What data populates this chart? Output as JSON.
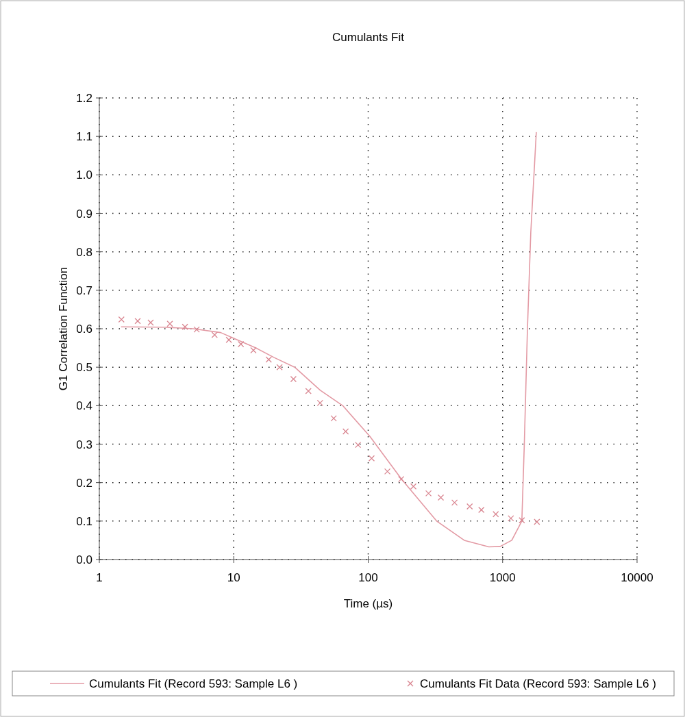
{
  "chart_data": {
    "type": "line",
    "title": "Cumulants Fit",
    "xlabel": "Time (µs)",
    "ylabel": "G1 Correlation Function",
    "log": "x",
    "xlim": [
      1,
      10000
    ],
    "xticks": [
      1,
      10,
      100,
      1000,
      10000
    ],
    "ylim": [
      0,
      1.2
    ],
    "yticks": [
      {
        "value": 0,
        "label": "0.0"
      },
      0.1,
      0.2,
      0.3,
      0.4,
      0.5,
      0.6,
      0.7,
      0.8,
      0.9,
      {
        "value": 1,
        "label": "1.0"
      },
      1.1,
      1.2
    ],
    "grid": true,
    "legend": "bottom",
    "series": [
      {
        "name": "Cumulants Fit (Record 593: Sample L6 )",
        "color": "#e39aa4",
        "marker": "none",
        "line_style": "solid",
        "x": [
          1.46,
          3,
          5,
          8,
          10,
          14.6,
          20,
          28.4,
          44,
          64.7,
          103,
          176,
          323,
          518,
          790,
          960,
          1170,
          1390,
          1450,
          1530,
          1620,
          1780
        ],
        "values": [
          0.605,
          0.604,
          0.6,
          0.59,
          0.575,
          0.55,
          0.525,
          0.5,
          0.44,
          0.4,
          0.32,
          0.21,
          0.1,
          0.05,
          0.033,
          0.034,
          0.05,
          0.1,
          0.3,
          0.6,
          0.85,
          1.11
        ]
      },
      {
        "name": "Cumulants Fit Data (Record 593: Sample L6 )",
        "type": "scatter",
        "color": "#d98590",
        "marker": "cross",
        "x": [
          1.46,
          1.93,
          2.41,
          3.35,
          4.34,
          5.3,
          7.2,
          9.2,
          11.3,
          14,
          18.2,
          21.9,
          27.8,
          35.9,
          43.9,
          55.4,
          68,
          84,
          106,
          139,
          176,
          217,
          281,
          347,
          439,
          569,
          695,
          889,
          1152,
          1390,
          1800
        ],
        "values": [
          0.624,
          0.62,
          0.616,
          0.613,
          0.605,
          0.598,
          0.584,
          0.571,
          0.56,
          0.544,
          0.52,
          0.5,
          0.469,
          0.438,
          0.407,
          0.367,
          0.333,
          0.298,
          0.263,
          0.229,
          0.209,
          0.19,
          0.172,
          0.161,
          0.148,
          0.138,
          0.129,
          0.118,
          0.107,
          0.102,
          0.098
        ]
      }
    ]
  }
}
